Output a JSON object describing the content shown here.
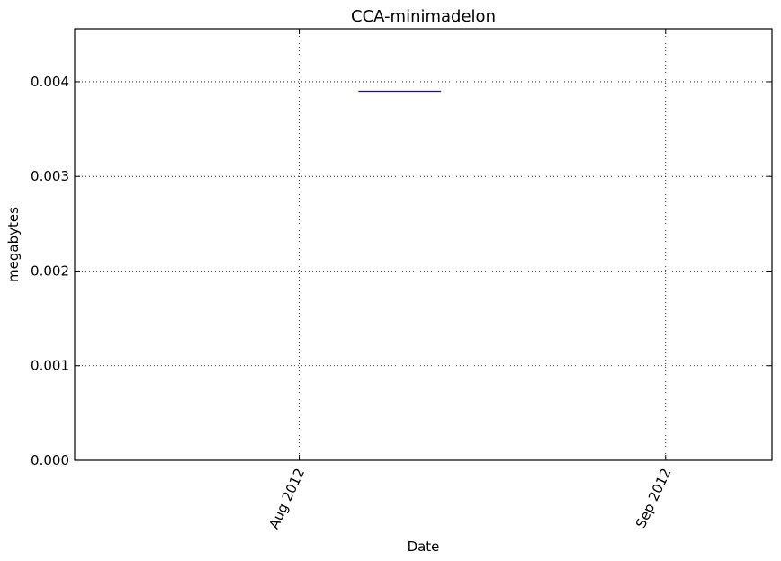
{
  "chart_data": {
    "type": "line",
    "title": "CCA-minimadelon",
    "xlabel": "Date",
    "ylabel": "megabytes",
    "x_axis_type": "date",
    "xlim": [
      "2012-07-13",
      "2012-09-10"
    ],
    "ylim": [
      0.0,
      0.00456
    ],
    "x_ticks": [
      {
        "label": "Aug 2012",
        "value": "2012-08-01"
      },
      {
        "label": "Sep 2012",
        "value": "2012-09-01"
      }
    ],
    "y_ticks": [
      {
        "label": "0.000",
        "value": 0.0
      },
      {
        "label": "0.001",
        "value": 0.001
      },
      {
        "label": "0.002",
        "value": 0.002
      },
      {
        "label": "0.003",
        "value": 0.003
      },
      {
        "label": "0.004",
        "value": 0.004
      }
    ],
    "grid": true,
    "x_tick_rotation": 65,
    "series": [
      {
        "color": "#0000ff",
        "points": [
          {
            "x": "2012-08-06",
            "y": 0.0039
          },
          {
            "x": "2012-08-13",
            "y": 0.0039
          }
        ]
      }
    ]
  }
}
